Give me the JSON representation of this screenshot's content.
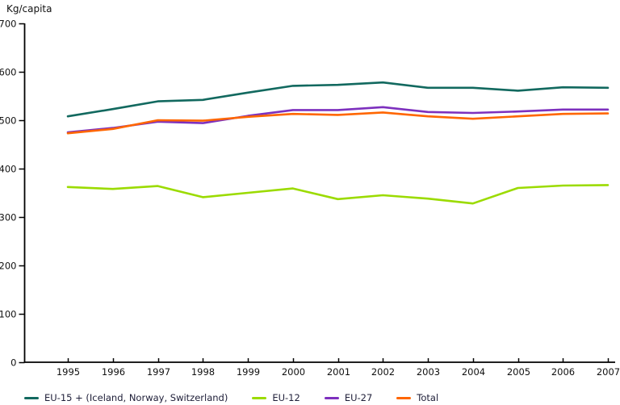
{
  "chart_data": {
    "type": "line",
    "title": "",
    "ylabel": "Kg/capita",
    "xlabel": "",
    "x_categories": [
      "1995",
      "1996",
      "1997",
      "1998",
      "1999",
      "2000",
      "2001",
      "2002",
      "2003",
      "2004",
      "2005",
      "2006",
      "2007"
    ],
    "ylim": [
      0,
      700
    ],
    "y_tick_step": 100,
    "y_tick_labels": [
      "0",
      "100",
      "200",
      "300",
      "400",
      "500",
      "600",
      "700"
    ],
    "grid": false,
    "legend_position": "bottom",
    "axis_color": "#000000",
    "line_width": 2.6,
    "series": [
      {
        "name": "EU-15 + (Iceland, Norway, Switzerland)",
        "color": "#12695F",
        "values": [
          508,
          523,
          539,
          542,
          557,
          571,
          573,
          578,
          567,
          567,
          561,
          568,
          567
        ]
      },
      {
        "name": "EU-12",
        "color": "#9BDB00",
        "values": [
          362,
          358,
          364,
          341,
          350,
          359,
          337,
          345,
          338,
          328,
          360,
          365,
          366
        ]
      },
      {
        "name": "EU-27",
        "color": "#7D30BE",
        "values": [
          475,
          484,
          497,
          494,
          509,
          521,
          521,
          527,
          517,
          515,
          518,
          522,
          522
        ]
      },
      {
        "name": "Total",
        "color": "#FF6600",
        "values": [
          473,
          482,
          500,
          499,
          507,
          513,
          511,
          516,
          508,
          503,
          508,
          513,
          514
        ]
      }
    ]
  }
}
